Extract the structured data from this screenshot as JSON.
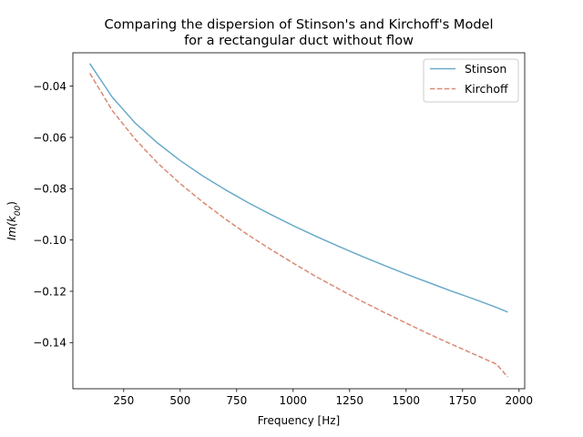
{
  "chart_data": {
    "type": "line",
    "title": "Comparing the dispersion of Stinson's and Kirchoff's Model",
    "subtitle": "for a rectangular duct without flow",
    "xlabel": "Frequency [Hz]",
    "ylabel_prefix": "Im(k",
    "ylabel_sub": "00",
    "ylabel_suffix": ")",
    "xlim": [
      25,
      2025
    ],
    "ylim": [
      -0.158,
      -0.027
    ],
    "xticks": [
      250,
      500,
      750,
      1000,
      1250,
      1500,
      1750,
      2000
    ],
    "xtick_labels": [
      "250",
      "500",
      "750",
      "1000",
      "1250",
      "1500",
      "1750",
      "2000"
    ],
    "yticks": [
      -0.04,
      -0.06,
      -0.08,
      -0.1,
      -0.12,
      -0.14
    ],
    "ytick_labels": [
      "−0.04",
      "−0.06",
      "−0.08",
      "−0.10",
      "−0.12",
      "−0.14"
    ],
    "grid": false,
    "legend_position": "upper right",
    "x": [
      100,
      200,
      300,
      400,
      500,
      600,
      700,
      800,
      900,
      1000,
      1100,
      1200,
      1300,
      1400,
      1500,
      1600,
      1700,
      1800,
      1900,
      1950
    ],
    "series": [
      {
        "name": "Stinson",
        "color": "#6aaac9",
        "dash": "solid",
        "values": [
          -0.0312,
          -0.0444,
          -0.0543,
          -0.0622,
          -0.069,
          -0.075,
          -0.0804,
          -0.0854,
          -0.09,
          -0.0944,
          -0.0985,
          -0.1024,
          -0.1062,
          -0.1098,
          -0.1133,
          -0.1166,
          -0.1199,
          -0.123,
          -0.1263,
          -0.1281
        ]
      },
      {
        "name": "Kirchoff",
        "color": "#d98a73",
        "dash": "dashed",
        "values": [
          -0.035,
          -0.0496,
          -0.0606,
          -0.07,
          -0.078,
          -0.0852,
          -0.0918,
          -0.098,
          -0.1036,
          -0.109,
          -0.1142,
          -0.119,
          -0.1237,
          -0.1281,
          -0.1324,
          -0.1366,
          -0.1406,
          -0.1445,
          -0.1484,
          -0.1534
        ]
      }
    ]
  }
}
